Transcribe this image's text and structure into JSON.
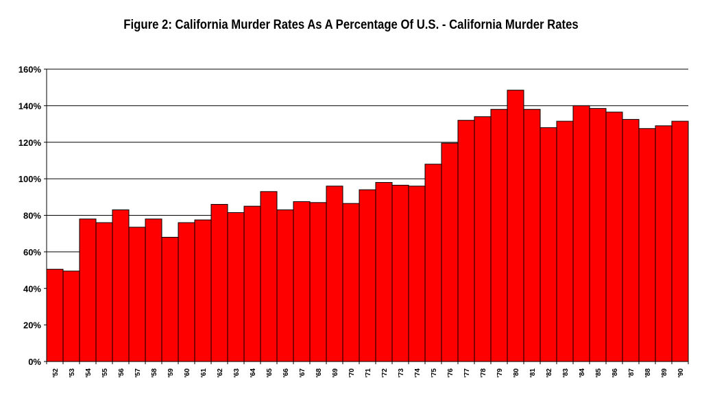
{
  "chart_data": {
    "type": "bar",
    "title": "Figure 2: California Murder Rates As A Percentage Of U.S. - California Murder Rates",
    "xlabel": "",
    "ylabel": "",
    "ylim": [
      0,
      160
    ],
    "yticks": [
      "0%",
      "20%",
      "40%",
      "60%",
      "80%",
      "100%",
      "120%",
      "140%",
      "160%"
    ],
    "ytick_values": [
      0,
      20,
      40,
      60,
      80,
      100,
      120,
      140,
      160
    ],
    "grid": "horizontal",
    "bar_color": "#ff0000",
    "categories": [
      "'52",
      "'53",
      "'54",
      "'55",
      "'56",
      "'57",
      "'58",
      "'59",
      "'60",
      "'61",
      "'62",
      "'63",
      "'64",
      "'65",
      "'66",
      "'67",
      "'68",
      "'69",
      "'70",
      "'71",
      "'72",
      "'73",
      "'74",
      "'75",
      "'76",
      "'77",
      "'78",
      "'79",
      "'80",
      "'81",
      "'82",
      "'83",
      "'84",
      "'85",
      "'86",
      "'87",
      "'88",
      "'89",
      "'90"
    ],
    "values": [
      50.5,
      49.5,
      78,
      76,
      83,
      73.5,
      78,
      68,
      76,
      77.5,
      86,
      81.5,
      85,
      93,
      83,
      87.5,
      87,
      96,
      86.5,
      94,
      98,
      96.5,
      96,
      108,
      119.5,
      132,
      134,
      138,
      148.5,
      138,
      128,
      131.5,
      140,
      138.5,
      136.5,
      132.5,
      127.5,
      129,
      131.5
    ]
  }
}
